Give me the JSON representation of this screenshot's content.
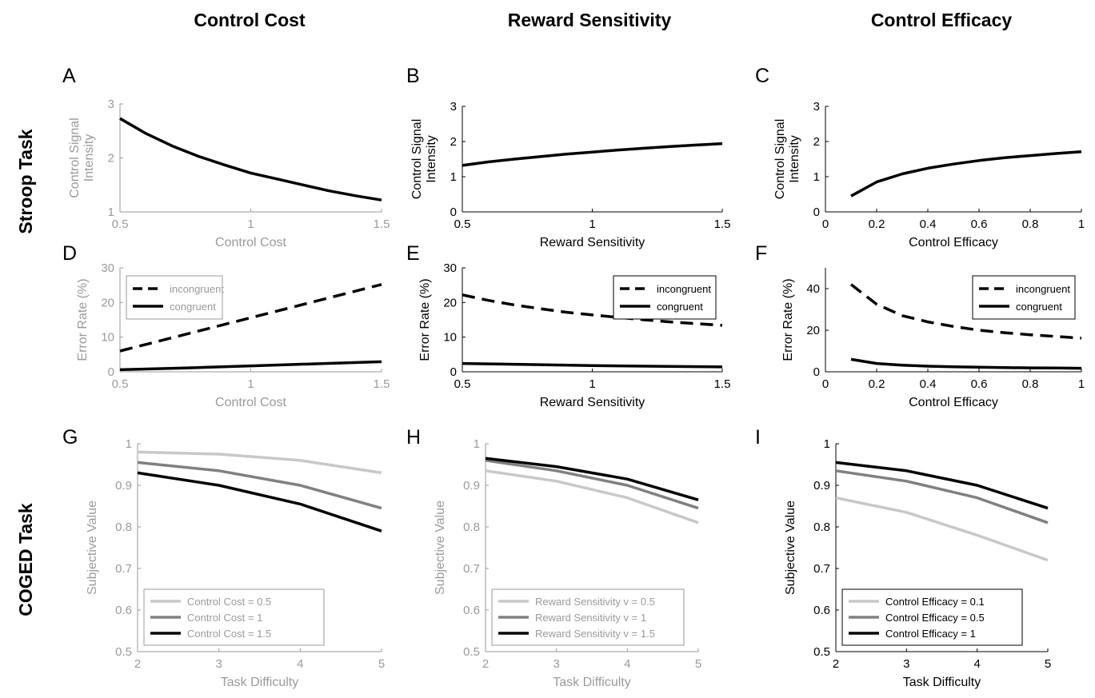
{
  "column_titles": [
    "Control Cost",
    "Reward Sensitivity",
    "Control Efficacy"
  ],
  "row_titles": [
    "Stroop Task",
    "COGED Task"
  ],
  "chart_data": [
    {
      "panel": "A",
      "type": "line",
      "xlabel": "Control Cost",
      "ylabel": "Control Signal Intensity",
      "xlim": [
        0.5,
        1.5
      ],
      "ylim": [
        1,
        3
      ],
      "xticks": [
        0.5,
        1,
        1.5
      ],
      "yticks": [
        1,
        2,
        3
      ],
      "xtick_labels": [
        "0.5",
        "1",
        "1.5"
      ],
      "ytick_labels": [
        "1",
        "2",
        "3"
      ],
      "legend": null,
      "grey_text": true,
      "series": [
        {
          "x": [
            0.5,
            0.6,
            0.7,
            0.8,
            0.9,
            1.0,
            1.1,
            1.2,
            1.3,
            1.4,
            1.5
          ],
          "y": [
            2.73,
            2.45,
            2.22,
            2.03,
            1.87,
            1.72,
            1.61,
            1.5,
            1.39,
            1.3,
            1.22
          ],
          "color": "#000000",
          "dash": false
        }
      ]
    },
    {
      "panel": "B",
      "type": "line",
      "xlabel": "Reward Sensitivity",
      "ylabel": "Control Signal Intensity",
      "xlim": [
        0.5,
        1.5
      ],
      "ylim": [
        0,
        3
      ],
      "xticks": [
        0.5,
        1,
        1.5
      ],
      "yticks": [
        0,
        1,
        2,
        3
      ],
      "xtick_labels": [
        "0.5",
        "1",
        "1.5"
      ],
      "ytick_labels": [
        "0",
        "1",
        "2",
        "3"
      ],
      "legend": null,
      "grey_text": false,
      "series": [
        {
          "x": [
            0.5,
            0.6,
            0.7,
            0.8,
            0.9,
            1.0,
            1.1,
            1.2,
            1.3,
            1.4,
            1.5
          ],
          "y": [
            1.32,
            1.42,
            1.5,
            1.57,
            1.64,
            1.7,
            1.76,
            1.81,
            1.86,
            1.9,
            1.94
          ],
          "color": "#000000",
          "dash": false
        }
      ]
    },
    {
      "panel": "C",
      "type": "line",
      "xlabel": "Control Efficacy",
      "ylabel": "Control Signal Intensity",
      "xlim": [
        0,
        1
      ],
      "ylim": [
        0,
        3
      ],
      "xticks": [
        0,
        0.2,
        0.4,
        0.6,
        0.8,
        1
      ],
      "yticks": [
        0,
        1,
        2,
        3
      ],
      "xtick_labels": [
        "0",
        "0.2",
        "0.4",
        "0.6",
        "0.8",
        "1"
      ],
      "ytick_labels": [
        "0",
        "1",
        "2",
        "3"
      ],
      "legend": null,
      "grey_text": false,
      "series": [
        {
          "x": [
            0.1,
            0.2,
            0.3,
            0.4,
            0.5,
            0.6,
            0.7,
            0.8,
            0.9,
            1.0
          ],
          "y": [
            0.45,
            0.85,
            1.08,
            1.24,
            1.36,
            1.46,
            1.54,
            1.6,
            1.66,
            1.71
          ],
          "color": "#000000",
          "dash": false
        }
      ]
    },
    {
      "panel": "D",
      "type": "line",
      "xlabel": "Control Cost",
      "ylabel": "Error Rate (%)",
      "xlim": [
        0.5,
        1.5
      ],
      "ylim": [
        0,
        30
      ],
      "xticks": [
        0.5,
        1,
        1.5
      ],
      "yticks": [
        0,
        10,
        20,
        30
      ],
      "xtick_labels": [
        "0.5",
        "1",
        "1.5"
      ],
      "ytick_labels": [
        "0",
        "10",
        "20",
        "30"
      ],
      "legend": "top-left",
      "grey_text": true,
      "series": [
        {
          "name": "incongruent",
          "x": [
            0.5,
            0.75,
            1.0,
            1.25,
            1.5
          ],
          "y": [
            6,
            10.8,
            15.6,
            20.4,
            25.2
          ],
          "color": "#000000",
          "dash": true
        },
        {
          "name": "congruent",
          "x": [
            0.5,
            0.75,
            1.0,
            1.25,
            1.5
          ],
          "y": [
            0.6,
            1.1,
            1.7,
            2.3,
            2.9
          ],
          "color": "#000000",
          "dash": false
        }
      ]
    },
    {
      "panel": "E",
      "type": "line",
      "xlabel": "Reward Sensitivity",
      "ylabel": "Error Rate (%)",
      "xlim": [
        0.5,
        1.5
      ],
      "ylim": [
        0,
        30
      ],
      "xticks": [
        0.5,
        1,
        1.5
      ],
      "yticks": [
        0,
        10,
        20,
        30
      ],
      "xtick_labels": [
        "0.5",
        "1",
        "1.5"
      ],
      "ytick_labels": [
        "0",
        "10",
        "20",
        "30"
      ],
      "legend": "top-right",
      "grey_text": false,
      "series": [
        {
          "name": "incongruent",
          "x": [
            0.5,
            0.6,
            0.7,
            0.8,
            0.9,
            1.0,
            1.1,
            1.2,
            1.3,
            1.4,
            1.5
          ],
          "y": [
            22.2,
            20.6,
            19.3,
            18.2,
            17.2,
            16.4,
            15.7,
            15.0,
            14.4,
            13.9,
            13.4
          ],
          "color": "#000000",
          "dash": true
        },
        {
          "name": "congruent",
          "x": [
            0.5,
            0.75,
            1.0,
            1.25,
            1.5
          ],
          "y": [
            2.4,
            2.1,
            1.8,
            1.6,
            1.4
          ],
          "color": "#000000",
          "dash": false
        }
      ]
    },
    {
      "panel": "F",
      "type": "line",
      "xlabel": "Control Efficacy",
      "ylabel": "Error Rate (%)",
      "xlim": [
        0,
        1
      ],
      "ylim": [
        0,
        50
      ],
      "xticks": [
        0,
        0.2,
        0.4,
        0.6,
        0.8,
        1
      ],
      "yticks": [
        0,
        20,
        40
      ],
      "xtick_labels": [
        "0",
        "0.2",
        "0.4",
        "0.6",
        "0.8",
        "1"
      ],
      "ytick_labels": [
        "0",
        "20",
        "40"
      ],
      "legend": "top-right",
      "grey_text": false,
      "series": [
        {
          "name": "incongruent",
          "x": [
            0.1,
            0.2,
            0.3,
            0.4,
            0.5,
            0.6,
            0.7,
            0.8,
            0.9,
            1.0
          ],
          "y": [
            42,
            32.5,
            27,
            24,
            21.8,
            20,
            18.8,
            17.8,
            17,
            16.2
          ],
          "color": "#000000",
          "dash": true
        },
        {
          "name": "congruent",
          "x": [
            0.1,
            0.2,
            0.3,
            0.4,
            0.5,
            0.6,
            0.7,
            0.8,
            0.9,
            1.0
          ],
          "y": [
            6,
            4,
            3.2,
            2.7,
            2.4,
            2.2,
            2.0,
            1.9,
            1.8,
            1.7
          ],
          "color": "#000000",
          "dash": false
        }
      ]
    },
    {
      "panel": "G",
      "type": "line",
      "xlabel": "Task Difficulty",
      "ylabel": "Subjective Value",
      "xlim": [
        2,
        5
      ],
      "ylim": [
        0.5,
        1
      ],
      "xticks": [
        2,
        3,
        4,
        5
      ],
      "yticks": [
        0.5,
        0.6,
        0.7,
        0.8,
        0.9,
        1
      ],
      "xtick_labels": [
        "2",
        "3",
        "4",
        "5"
      ],
      "ytick_labels": [
        "0.5",
        "0.6",
        "0.7",
        "0.8",
        "0.9",
        "1"
      ],
      "legend": "bottom-left",
      "grey_text": true,
      "series": [
        {
          "name": "Control Cost = 0.5",
          "x": [
            2,
            3,
            4,
            5
          ],
          "y": [
            0.98,
            0.975,
            0.96,
            0.93
          ],
          "color": "#c8c8c8",
          "dash": false
        },
        {
          "name": "Control Cost = 1",
          "x": [
            2,
            3,
            4,
            5
          ],
          "y": [
            0.955,
            0.935,
            0.9,
            0.845
          ],
          "color": "#808080",
          "dash": false
        },
        {
          "name": "Control Cost = 1.5",
          "x": [
            2,
            3,
            4,
            5
          ],
          "y": [
            0.93,
            0.9,
            0.855,
            0.79
          ],
          "color": "#000000",
          "dash": false
        }
      ]
    },
    {
      "panel": "H",
      "type": "line",
      "xlabel": "Task Difficulty",
      "ylabel": "Subjective Value",
      "xlim": [
        2,
        5
      ],
      "ylim": [
        0.5,
        1
      ],
      "xticks": [
        2,
        3,
        4,
        5
      ],
      "yticks": [
        0.5,
        0.6,
        0.7,
        0.8,
        0.9,
        1
      ],
      "xtick_labels": [
        "2",
        "3",
        "4",
        "5"
      ],
      "ytick_labels": [
        "0.5",
        "0.6",
        "0.7",
        "0.8",
        "0.9",
        "1"
      ],
      "legend": "bottom-left",
      "grey_text": true,
      "series": [
        {
          "name": "Reward Sensitivity v = 0.5",
          "x": [
            2,
            3,
            4,
            5
          ],
          "y": [
            0.935,
            0.91,
            0.87,
            0.81
          ],
          "color": "#c8c8c8",
          "dash": false
        },
        {
          "name": "Reward Sensitivity v = 1",
          "x": [
            2,
            3,
            4,
            5
          ],
          "y": [
            0.96,
            0.935,
            0.9,
            0.845
          ],
          "color": "#808080",
          "dash": false
        },
        {
          "name": "Reward Sensitivity v = 1.5",
          "x": [
            2,
            3,
            4,
            5
          ],
          "y": [
            0.965,
            0.945,
            0.915,
            0.865
          ],
          "color": "#000000",
          "dash": false
        }
      ]
    },
    {
      "panel": "I",
      "type": "line",
      "xlabel": "Task Difficulty",
      "ylabel": "Subjective Value",
      "xlim": [
        2,
        5
      ],
      "ylim": [
        0.5,
        1
      ],
      "xticks": [
        2,
        3,
        4,
        5
      ],
      "yticks": [
        0.5,
        0.6,
        0.7,
        0.8,
        0.9,
        1
      ],
      "xtick_labels": [
        "2",
        "3",
        "4",
        "5"
      ],
      "ytick_labels": [
        "0.5",
        "0.6",
        "0.7",
        "0.8",
        "0.9",
        "1"
      ],
      "legend": "bottom-left",
      "grey_text": false,
      "series": [
        {
          "name": "Control Efficacy = 0.1",
          "x": [
            2,
            3,
            4,
            5
          ],
          "y": [
            0.87,
            0.835,
            0.78,
            0.72
          ],
          "color": "#c8c8c8",
          "dash": false
        },
        {
          "name": "Control Efficacy = 0.5",
          "x": [
            2,
            3,
            4,
            5
          ],
          "y": [
            0.935,
            0.91,
            0.87,
            0.81
          ],
          "color": "#808080",
          "dash": false
        },
        {
          "name": "Control Efficacy = 1",
          "x": [
            2,
            3,
            4,
            5
          ],
          "y": [
            0.955,
            0.935,
            0.9,
            0.845
          ],
          "color": "#000000",
          "dash": false
        }
      ]
    }
  ]
}
